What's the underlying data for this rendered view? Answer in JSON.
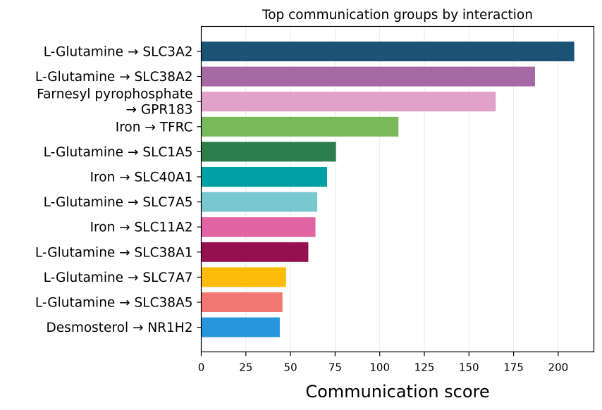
{
  "chart_data": {
    "type": "bar",
    "orientation": "horizontal",
    "title": "Top communication groups by interaction",
    "xlabel": "Communication score",
    "ylabel": "",
    "xlim": [
      0,
      220
    ],
    "xticks": [
      0,
      25,
      50,
      75,
      100,
      125,
      150,
      175,
      200
    ],
    "grid": "x",
    "categories": [
      "L-Glutamine → SLC3A2",
      "L-Glutamine → SLC38A2",
      "Farnesyl pyrophosphate\n→ GPR183",
      "Iron → TFRC",
      "L-Glutamine → SLC1A5",
      "Iron → SLC40A1",
      "L-Glutamine → SLC7A5",
      "Iron → SLC11A2",
      "L-Glutamine → SLC38A1",
      "L-Glutamine → SLC7A7",
      "L-Glutamine → SLC38A5",
      "Desmosterol → NR1H2"
    ],
    "values": [
      209,
      187,
      165,
      110.5,
      75.5,
      70.5,
      65,
      64,
      60,
      47.5,
      45.5,
      44
    ],
    "colors": [
      "#1b5276",
      "#a569a4",
      "#e0a2c8",
      "#78b95c",
      "#2e7d4c",
      "#00a0a6",
      "#78c9cf",
      "#e064a2",
      "#96104f",
      "#ffbb0a",
      "#f27772",
      "#2896dc"
    ]
  }
}
